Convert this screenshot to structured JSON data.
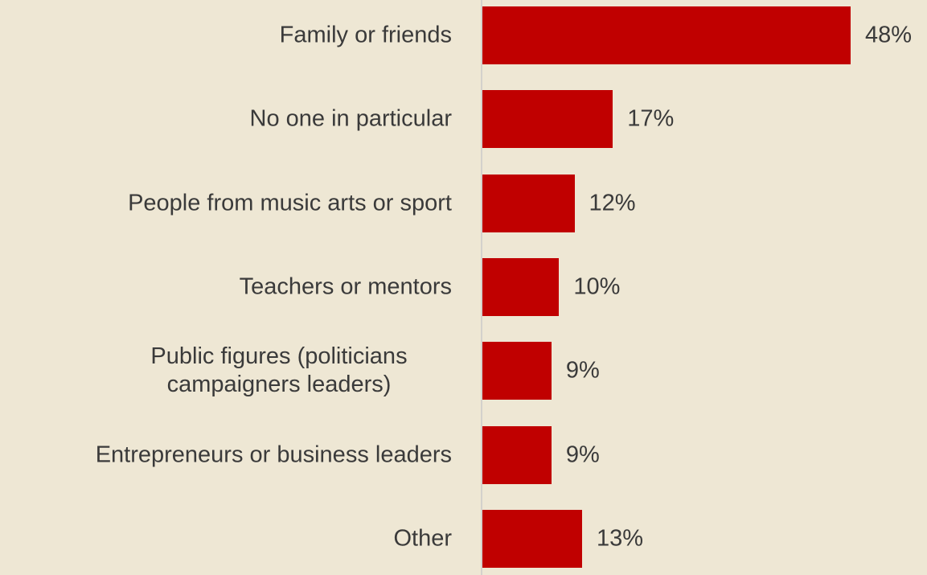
{
  "chart_data": {
    "type": "bar",
    "orientation": "horizontal",
    "categories": [
      "Family or friends",
      "No one in particular",
      "People from music arts or sport",
      "Teachers or mentors",
      "Public figures (politicians campaigners leaders)",
      "Entrepreneurs or business leaders",
      "Other"
    ],
    "values": [
      48,
      17,
      12,
      10,
      9,
      9,
      13
    ],
    "value_labels": [
      "48%",
      "17%",
      "12%",
      "10%",
      "9%",
      "9%",
      "13%"
    ],
    "color": "#c00000"
  }
}
